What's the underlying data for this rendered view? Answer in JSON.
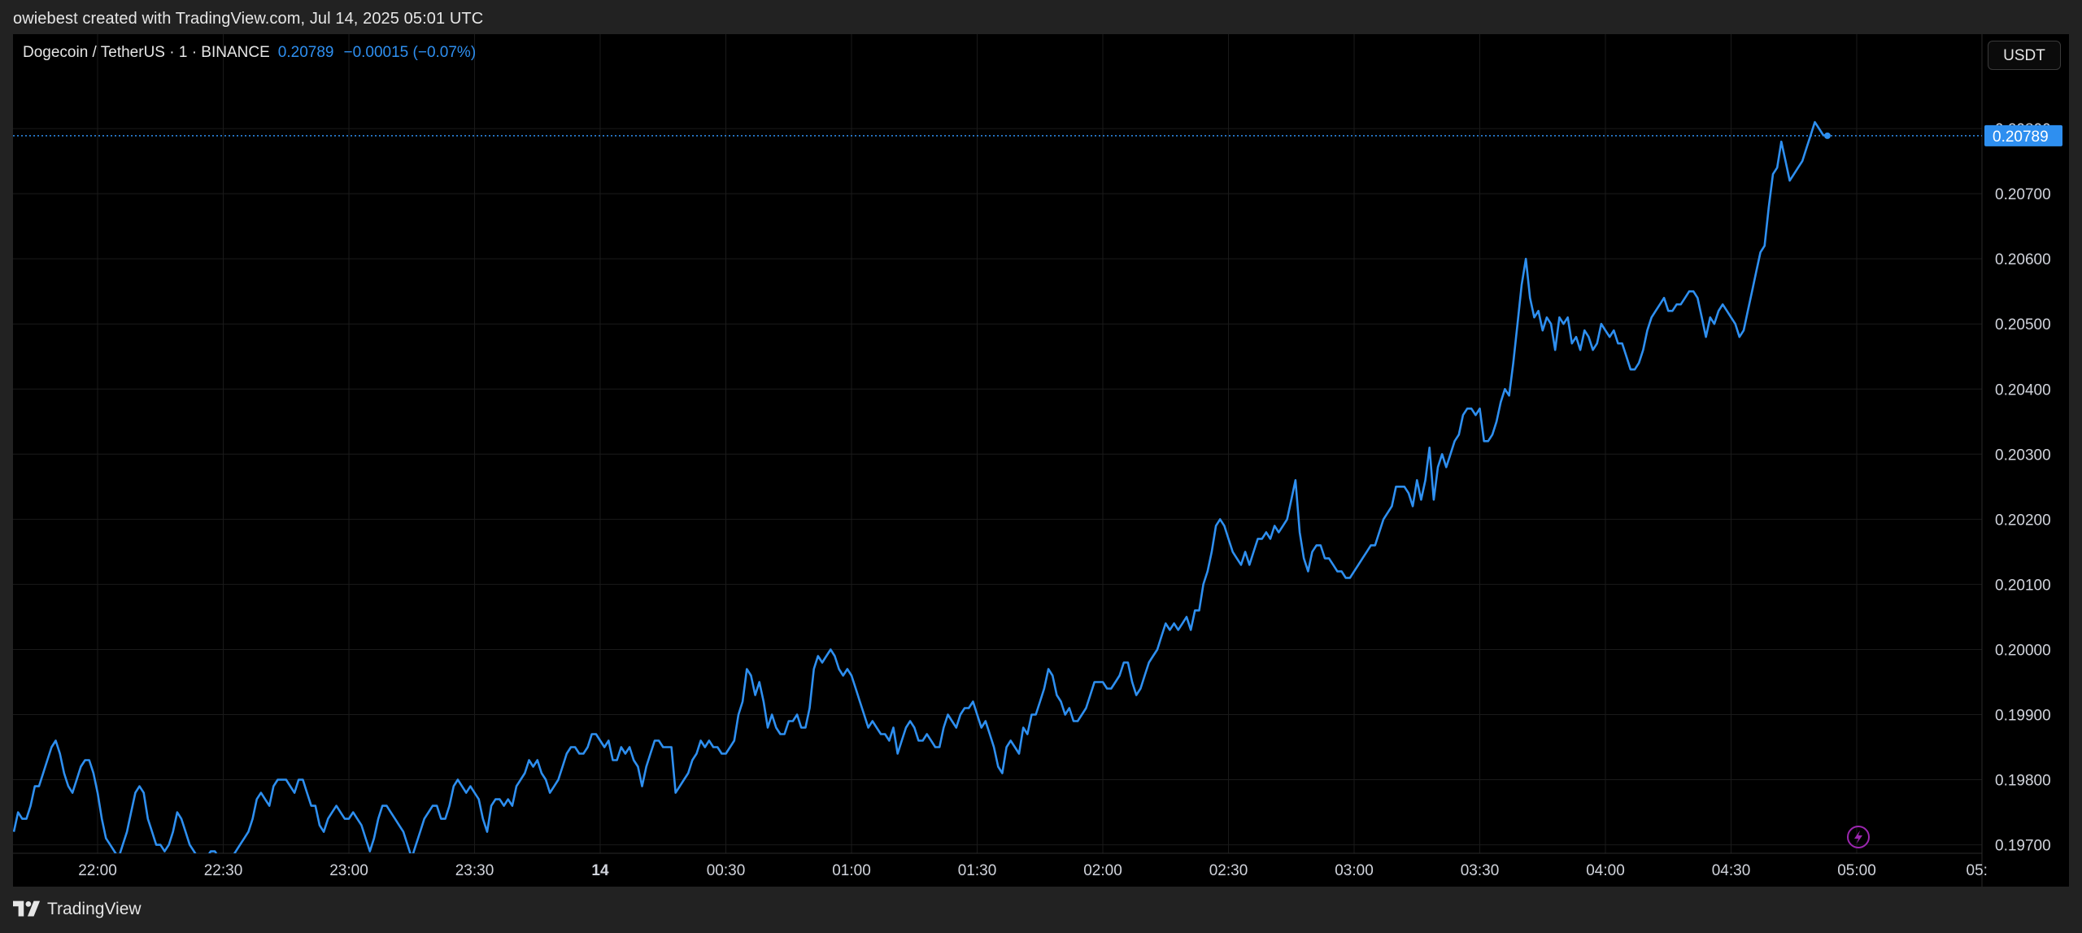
{
  "header": {
    "credit": "owiebest created with TradingView.com, Jul 14, 2025 05:01 UTC"
  },
  "legend": {
    "symbol": "Dogecoin / TetherUS · 1 · BINANCE",
    "last": "0.20789",
    "change": "−0.00015 (−0.07%)"
  },
  "currency_button": "USDT",
  "footer": {
    "brand": "TradingView"
  },
  "colors": {
    "line": "#2e8ff0",
    "background": "#000000",
    "grid": "#1a1a1a",
    "axis_text": "#d1d4dc",
    "last_price_label": "#2e8ff0",
    "flash_icon": "#9c27b0"
  },
  "chart_data": {
    "type": "line",
    "title": "",
    "xlabel": "",
    "ylabel": "",
    "ylim": [
      0.19687,
      0.20945
    ],
    "x_tick_labels": [
      "22:00",
      "22:30",
      "23:00",
      "23:30",
      "14",
      "00:30",
      "01:00",
      "01:30",
      "02:00",
      "02:30",
      "03:00",
      "03:30",
      "04:00",
      "04:30",
      "05:00",
      "05:"
    ],
    "y_tick_labels": [
      "0.19700",
      "0.19800",
      "0.19900",
      "0.20000",
      "0.20100",
      "0.20200",
      "0.20300",
      "0.20400",
      "0.20500",
      "0.20600",
      "0.20700",
      "0.20800"
    ],
    "last_value_label": "0.20789",
    "grid": true,
    "series": [
      {
        "interval": "1 minute",
        "start_time": "21:40",
        "values": [
          0.1972,
          0.1975,
          0.1974,
          0.1974,
          0.1976,
          0.1979,
          0.1979,
          0.1981,
          0.1983,
          0.1985,
          0.1986,
          0.1984,
          0.1981,
          0.1979,
          0.1978,
          0.198,
          0.1982,
          0.1983,
          0.1983,
          0.1981,
          0.1978,
          0.1974,
          0.1971,
          0.197,
          0.1969,
          0.1968,
          0.197,
          0.1972,
          0.1975,
          0.1978,
          0.1979,
          0.1978,
          0.1974,
          0.1972,
          0.197,
          0.197,
          0.1969,
          0.197,
          0.1972,
          0.1975,
          0.1974,
          0.1972,
          0.197,
          0.1969,
          0.1968,
          0.1967,
          0.1968,
          0.1969,
          0.1969,
          0.1968,
          0.1967,
          0.1967,
          0.1968,
          0.1969,
          0.197,
          0.1971,
          0.1972,
          0.1974,
          0.1977,
          0.1978,
          0.1977,
          0.1976,
          0.1979,
          0.198,
          0.198,
          0.198,
          0.1979,
          0.1978,
          0.198,
          0.198,
          0.1978,
          0.1976,
          0.1976,
          0.1973,
          0.1972,
          0.1974,
          0.1975,
          0.1976,
          0.1975,
          0.1974,
          0.1974,
          0.1975,
          0.1974,
          0.1973,
          0.1971,
          0.1969,
          0.1971,
          0.1974,
          0.1976,
          0.1976,
          0.1975,
          0.1974,
          0.1973,
          0.1972,
          0.197,
          0.1968,
          0.197,
          0.1972,
          0.1974,
          0.1975,
          0.1976,
          0.1976,
          0.1974,
          0.1974,
          0.1976,
          0.1979,
          0.198,
          0.1979,
          0.1978,
          0.1979,
          0.1978,
          0.1977,
          0.1974,
          0.1972,
          0.1976,
          0.1977,
          0.1977,
          0.1976,
          0.1977,
          0.1976,
          0.1979,
          0.198,
          0.1981,
          0.1983,
          0.1982,
          0.1983,
          0.1981,
          0.198,
          0.1978,
          0.1979,
          0.198,
          0.1982,
          0.1984,
          0.1985,
          0.1985,
          0.1984,
          0.1984,
          0.1985,
          0.1987,
          0.1987,
          0.1986,
          0.1985,
          0.1986,
          0.1983,
          0.1983,
          0.1985,
          0.1984,
          0.1985,
          0.1983,
          0.1982,
          0.1979,
          0.1982,
          0.1984,
          0.1986,
          0.1986,
          0.1985,
          0.1985,
          0.1985,
          0.1978,
          0.1979,
          0.198,
          0.1981,
          0.1983,
          0.1984,
          0.1986,
          0.1985,
          0.1986,
          0.1985,
          0.1985,
          0.1984,
          0.1984,
          0.1985,
          0.1986,
          0.199,
          0.1992,
          0.1997,
          0.1996,
          0.1993,
          0.1995,
          0.1992,
          0.1988,
          0.199,
          0.1988,
          0.1987,
          0.1987,
          0.1989,
          0.1989,
          0.199,
          0.1988,
          0.1988,
          0.1991,
          0.1997,
          0.1999,
          0.1998,
          0.1999,
          0.2,
          0.1999,
          0.1997,
          0.1996,
          0.1997,
          0.1996,
          0.1994,
          0.1992,
          0.199,
          0.1988,
          0.1989,
          0.1988,
          0.1987,
          0.1987,
          0.1986,
          0.1988,
          0.1984,
          0.1986,
          0.1988,
          0.1989,
          0.1988,
          0.1986,
          0.1986,
          0.1987,
          0.1986,
          0.1985,
          0.1985,
          0.1988,
          0.199,
          0.1989,
          0.1988,
          0.199,
          0.1991,
          0.1991,
          0.1992,
          0.199,
          0.1988,
          0.1989,
          0.1987,
          0.1985,
          0.1982,
          0.1981,
          0.1985,
          0.1986,
          0.1985,
          0.1984,
          0.1988,
          0.1987,
          0.199,
          0.199,
          0.1992,
          0.1994,
          0.1997,
          0.1996,
          0.1993,
          0.1992,
          0.199,
          0.1991,
          0.1989,
          0.1989,
          0.199,
          0.1991,
          0.1993,
          0.1995,
          0.1995,
          0.1995,
          0.1994,
          0.1994,
          0.1995,
          0.1996,
          0.1998,
          0.1998,
          0.1995,
          0.1993,
          0.1994,
          0.1996,
          0.1998,
          0.1999,
          0.2,
          0.2002,
          0.2004,
          0.2003,
          0.2004,
          0.2003,
          0.2004,
          0.2005,
          0.2003,
          0.2006,
          0.2006,
          0.201,
          0.2012,
          0.2015,
          0.2019,
          0.202,
          0.2019,
          0.2017,
          0.2015,
          0.2014,
          0.2013,
          0.2015,
          0.2013,
          0.2015,
          0.2017,
          0.2017,
          0.2018,
          0.2017,
          0.2019,
          0.2018,
          0.2019,
          0.202,
          0.2023,
          0.2026,
          0.2018,
          0.2014,
          0.2012,
          0.2015,
          0.2016,
          0.2016,
          0.2014,
          0.2014,
          0.2013,
          0.2012,
          0.2012,
          0.2011,
          0.2011,
          0.2012,
          0.2013,
          0.2014,
          0.2015,
          0.2016,
          0.2016,
          0.2018,
          0.202,
          0.2021,
          0.2022,
          0.2025,
          0.2025,
          0.2025,
          0.2024,
          0.2022,
          0.2026,
          0.2023,
          0.2026,
          0.2031,
          0.2023,
          0.2028,
          0.203,
          0.2028,
          0.203,
          0.2032,
          0.2033,
          0.2036,
          0.2037,
          0.2037,
          0.2036,
          0.2037,
          0.2032,
          0.2032,
          0.2033,
          0.2035,
          0.2038,
          0.204,
          0.2039,
          0.2044,
          0.205,
          0.2056,
          0.206,
          0.2054,
          0.2051,
          0.2052,
          0.2049,
          0.2051,
          0.205,
          0.2046,
          0.2051,
          0.205,
          0.2051,
          0.2047,
          0.2048,
          0.2046,
          0.2049,
          0.2048,
          0.2046,
          0.2047,
          0.205,
          0.2049,
          0.2048,
          0.2049,
          0.2047,
          0.2047,
          0.2045,
          0.2043,
          0.2043,
          0.2044,
          0.2046,
          0.2049,
          0.2051,
          0.2052,
          0.2053,
          0.2054,
          0.2052,
          0.2052,
          0.2053,
          0.2053,
          0.2054,
          0.2055,
          0.2055,
          0.2054,
          0.2051,
          0.2048,
          0.2051,
          0.205,
          0.2052,
          0.2053,
          0.2052,
          0.2051,
          0.205,
          0.2048,
          0.2049,
          0.2052,
          0.2055,
          0.2058,
          0.2061,
          0.2062,
          0.2068,
          0.2073,
          0.2074,
          0.2078,
          0.2075,
          0.2072,
          0.2073,
          0.2074,
          0.2075,
          0.2077,
          0.2079,
          0.2081,
          0.208,
          0.2079,
          0.20789
        ]
      }
    ]
  }
}
